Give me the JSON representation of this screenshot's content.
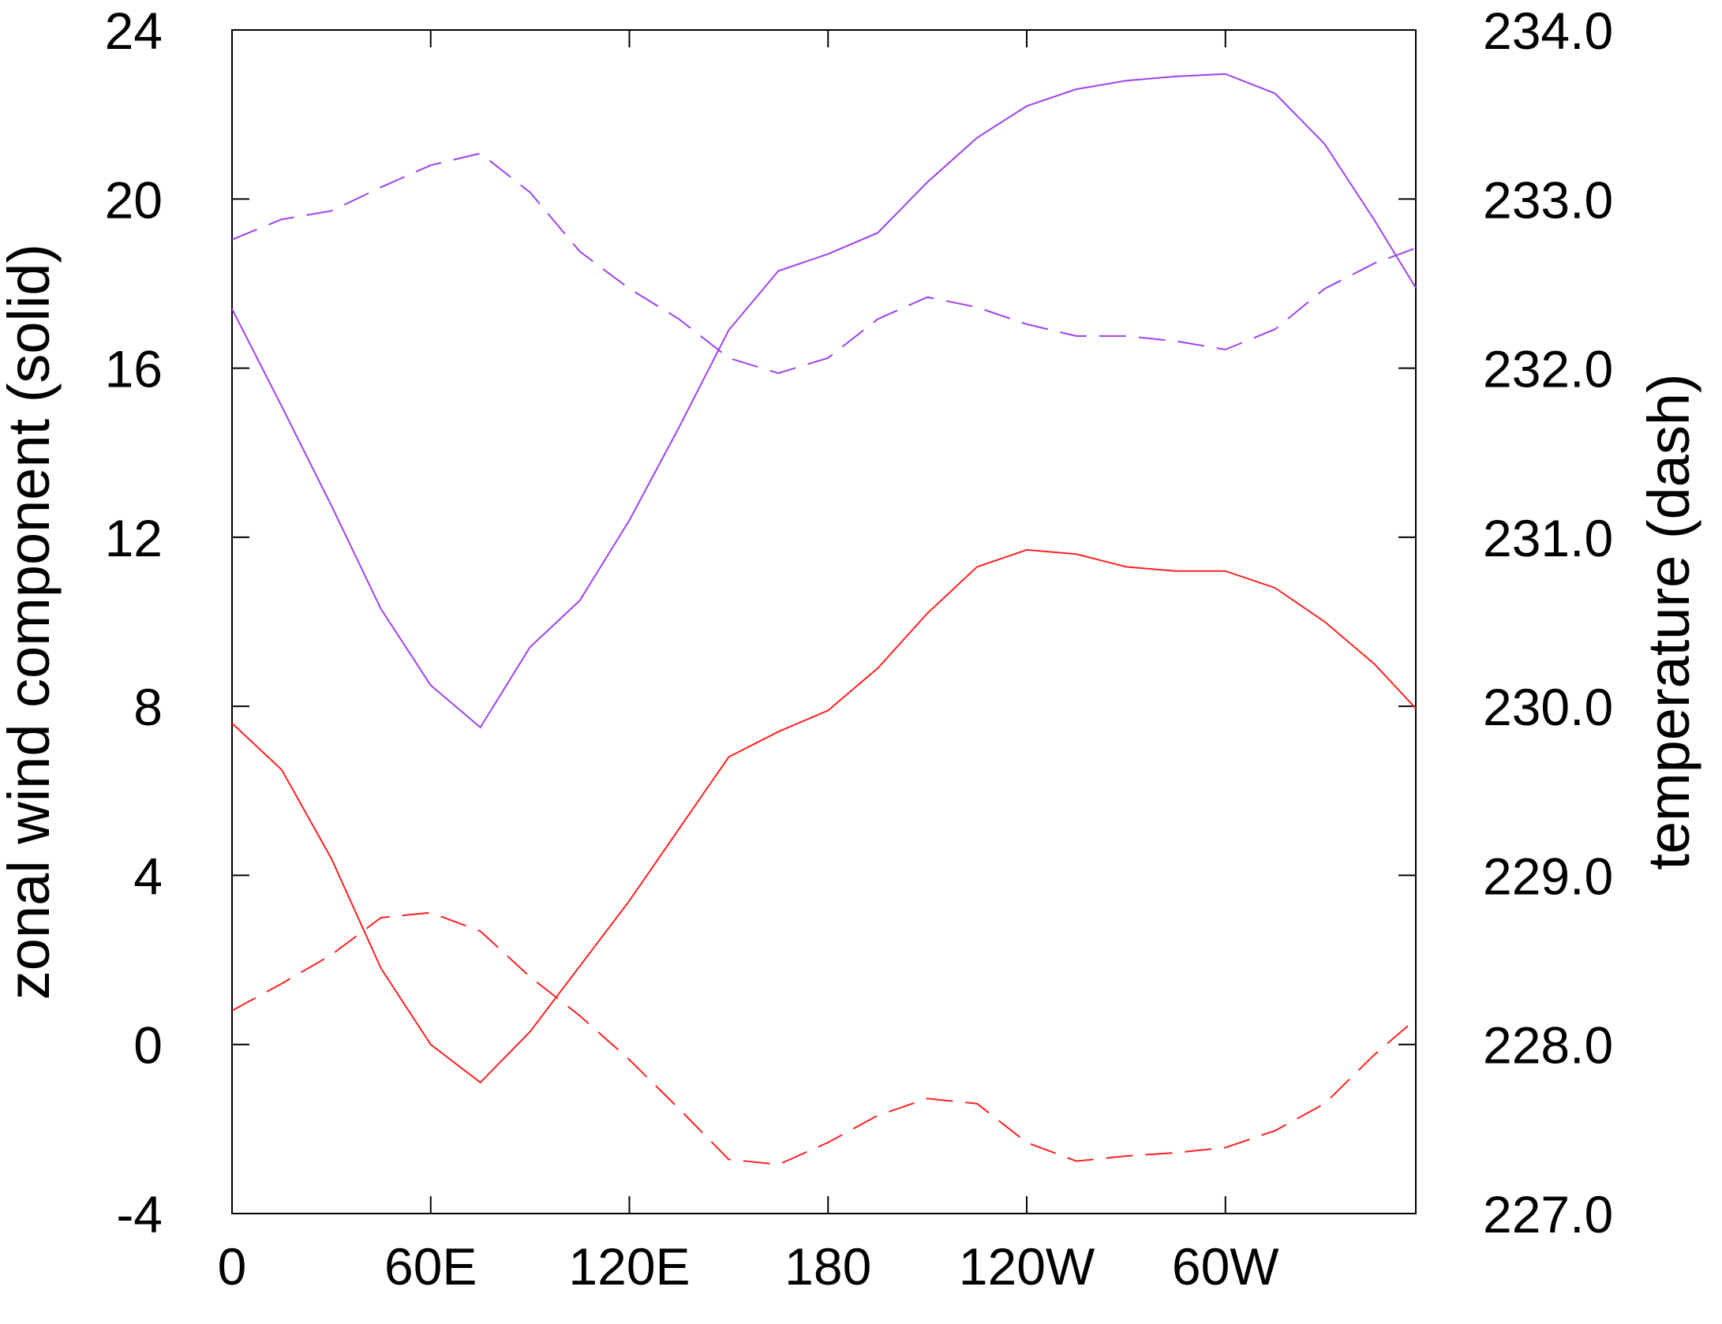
{
  "chart_data": {
    "type": "line",
    "x": [
      0,
      15,
      30,
      45,
      60,
      75,
      90,
      105,
      120,
      135,
      150,
      165,
      180,
      195,
      210,
      225,
      240,
      255,
      270,
      285,
      300,
      315,
      330,
      345,
      357.5
    ],
    "xlim": [
      0,
      357.5
    ],
    "xticks": [
      0,
      {
        "value": 60,
        "label": "60E"
      },
      {
        "value": 120,
        "label": "120E"
      },
      180,
      {
        "value": 240,
        "label": "120W"
      },
      {
        "value": 300,
        "label": "60W"
      }
    ],
    "ylim": [
      -4,
      24
    ],
    "yticks": [
      -4,
      0,
      4,
      8,
      12,
      16,
      20,
      24
    ],
    "y2lim": [
      227,
      234
    ],
    "y2ticks": [
      {
        "value": 227,
        "label": "227.0"
      },
      {
        "value": 228,
        "label": "228.0"
      },
      {
        "value": 229,
        "label": "229.0"
      },
      {
        "value": 230,
        "label": "230.0"
      },
      {
        "value": 231,
        "label": "231.0"
      },
      {
        "value": 232,
        "label": "232.0"
      },
      {
        "value": 233,
        "label": "233.0"
      },
      {
        "value": 234,
        "label": "234.0"
      }
    ],
    "ylabel": "zonal wind component (solid)",
    "y2label": "temperature (dash)",
    "series": [
      {
        "color": "#a040f0",
        "dash": false,
        "axis": "y",
        "values": [
          17.4,
          15.1,
          12.75,
          10.3,
          8.5,
          7.5,
          9.4,
          10.5,
          12.4,
          14.6,
          16.9,
          18.3,
          18.7,
          19.2,
          20.4,
          21.45,
          22.2,
          22.6,
          22.8,
          22.9,
          22.96,
          22.5,
          21.3,
          19.5,
          17.9
        ]
      },
      {
        "color": "#ff2020",
        "dash": false,
        "axis": "y",
        "values": [
          7.6,
          6.5,
          4.4,
          1.8,
          0.0,
          -0.9,
          0.3,
          1.85,
          3.4,
          5.1,
          6.8,
          7.4,
          7.9,
          8.9,
          10.2,
          11.3,
          11.7,
          11.6,
          11.3,
          11.2,
          11.2,
          10.8,
          10.0,
          9.0,
          7.95
        ]
      },
      {
        "color": "#a040f0",
        "dash": true,
        "axis": "y2",
        "values": [
          232.76,
          232.88,
          232.93,
          233.07,
          233.2,
          233.27,
          233.04,
          232.69,
          232.47,
          232.29,
          232.06,
          231.97,
          232.06,
          232.29,
          232.42,
          232.36,
          232.26,
          232.19,
          232.19,
          232.16,
          232.11,
          232.23,
          232.47,
          232.62,
          232.71
        ]
      },
      {
        "color": "#ff2020",
        "dash": true,
        "axis": "y2",
        "values": [
          228.2,
          228.36,
          228.53,
          228.75,
          228.78,
          228.67,
          228.4,
          228.17,
          227.91,
          227.62,
          227.32,
          227.29,
          227.42,
          227.58,
          227.68,
          227.65,
          227.42,
          227.31,
          227.34,
          227.36,
          227.39,
          227.49,
          227.65,
          227.94,
          228.15
        ]
      }
    ]
  }
}
